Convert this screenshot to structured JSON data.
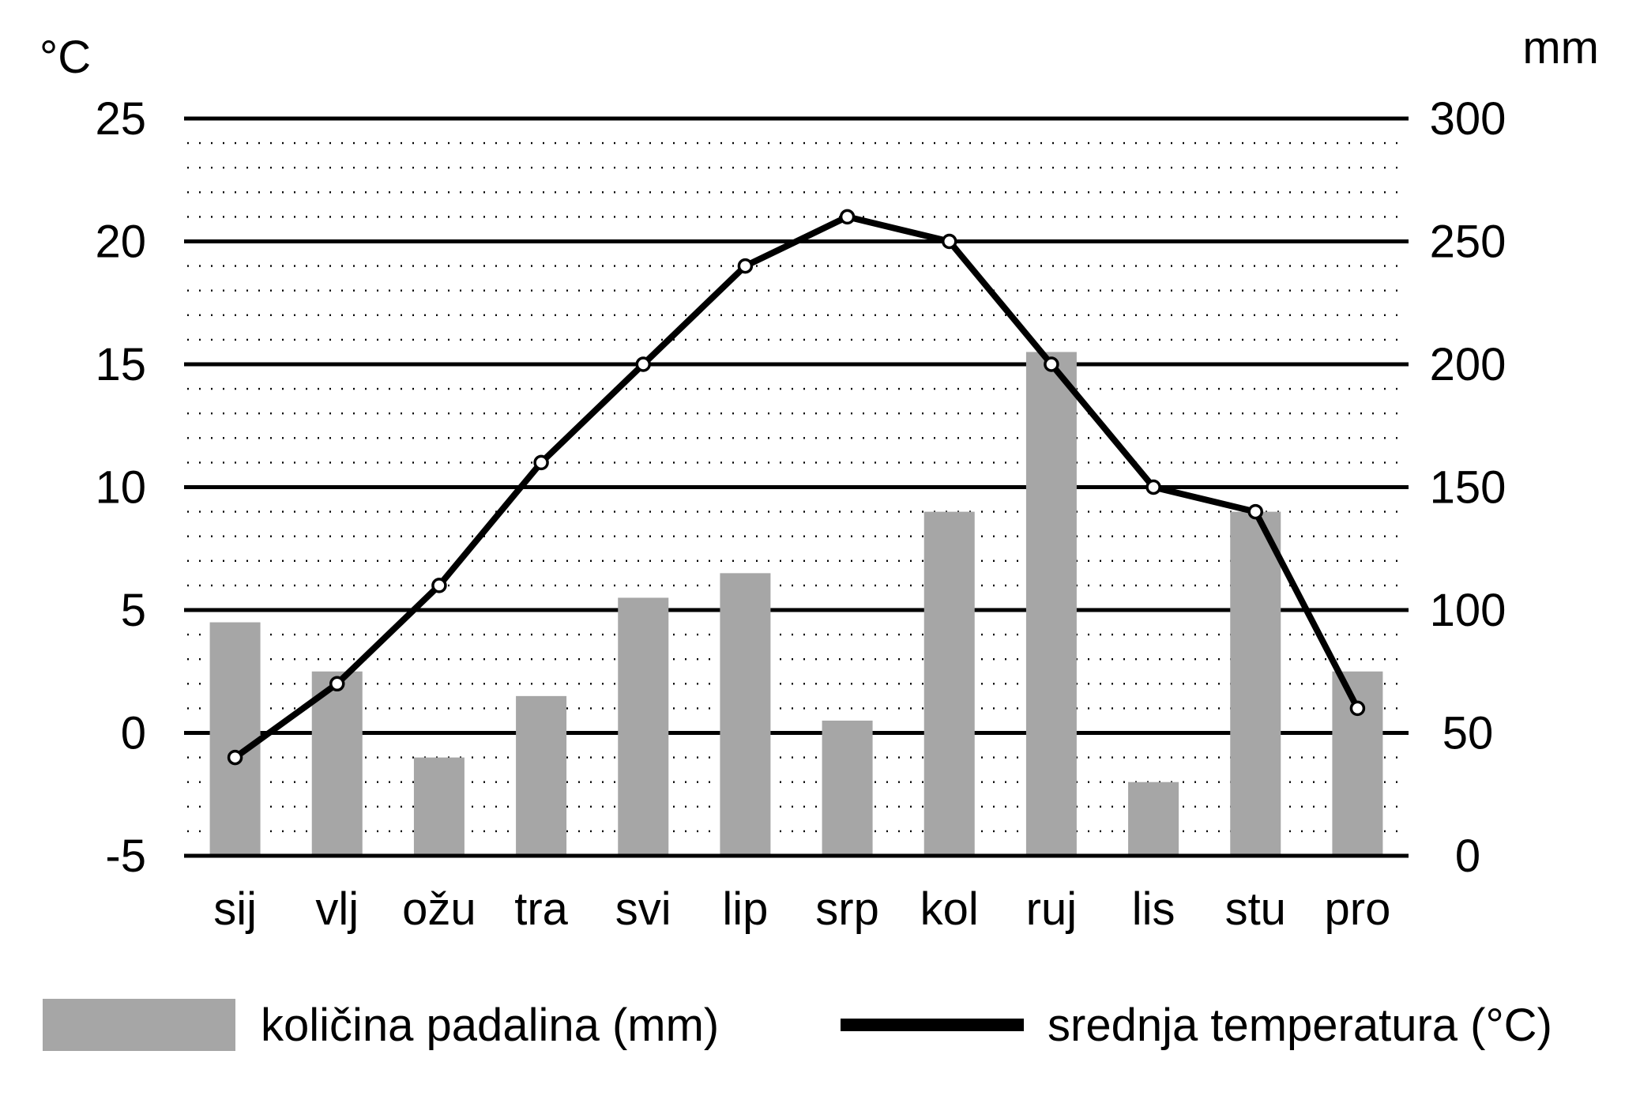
{
  "chart_data": {
    "type": "bar+line",
    "categories": [
      "sij",
      "vlj",
      "ožu",
      "tra",
      "svi",
      "lip",
      "srp",
      "kol",
      "ruj",
      "lis",
      "stu",
      "pro"
    ],
    "series": [
      {
        "name": "količina padalina (mm)",
        "type": "bar",
        "axis": "right",
        "color": "#a6a6a6",
        "values": [
          95,
          75,
          40,
          65,
          105,
          115,
          55,
          140,
          205,
          30,
          140,
          75
        ]
      },
      {
        "name": "srednja temperatura (°C)",
        "type": "line",
        "axis": "left",
        "color": "#000000",
        "values": [
          -1,
          2,
          6,
          11,
          15,
          19,
          21,
          20,
          15,
          10,
          9,
          1
        ]
      }
    ],
    "left_axis": {
      "unit": "°C",
      "range": [
        -5,
        25
      ],
      "ticks": [
        "25",
        "20",
        "15",
        "10",
        "5",
        "0",
        "-5"
      ]
    },
    "right_axis": {
      "unit": "mm",
      "range": [
        0,
        300
      ],
      "ticks": [
        "300",
        "250",
        "200",
        "150",
        "100",
        "50",
        "0"
      ]
    },
    "grid": "solid major lines every 5 °C, dotted minor lines every 1 °C"
  },
  "legend": {
    "bar_label": "količina padalina (mm)",
    "line_label": "srednja temperatura (°C)"
  }
}
